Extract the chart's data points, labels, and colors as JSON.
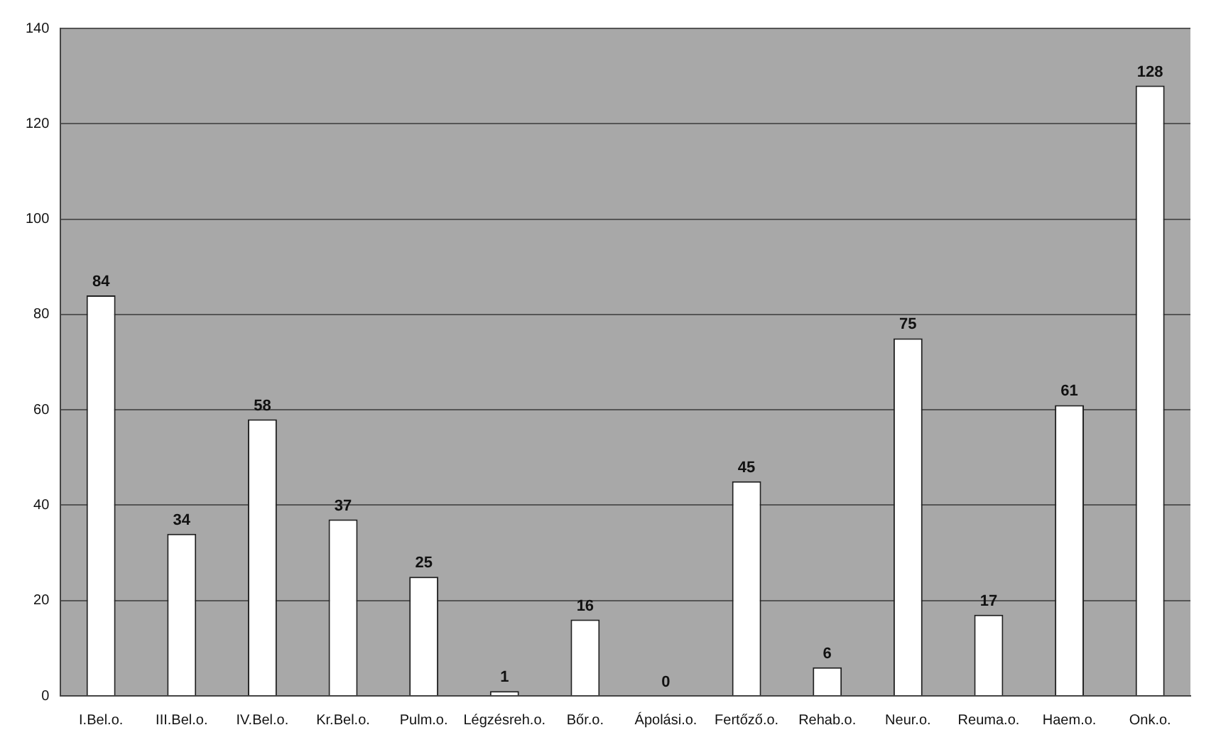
{
  "chart_data": {
    "type": "bar",
    "categories": [
      "I.Bel.o.",
      "III.Bel.o.",
      "IV.Bel.o.",
      "Kr.Bel.o.",
      "Pulm.o.",
      "Légzésreh.o.",
      "Bőr.o.",
      "Ápolási.o.",
      "Fertőző.o.",
      "Rehab.o.",
      "Neur.o.",
      "Reuma.o.",
      "Haem.o.",
      "Onk.o."
    ],
    "values": [
      84,
      34,
      58,
      37,
      25,
      1,
      16,
      0,
      45,
      6,
      75,
      17,
      61,
      128
    ],
    "color": "#ffffff",
    "ylim": [
      0,
      140
    ],
    "yticks": [
      0,
      20,
      40,
      60,
      80,
      100,
      120,
      140
    ],
    "grid": "y",
    "data_labels": true
  }
}
